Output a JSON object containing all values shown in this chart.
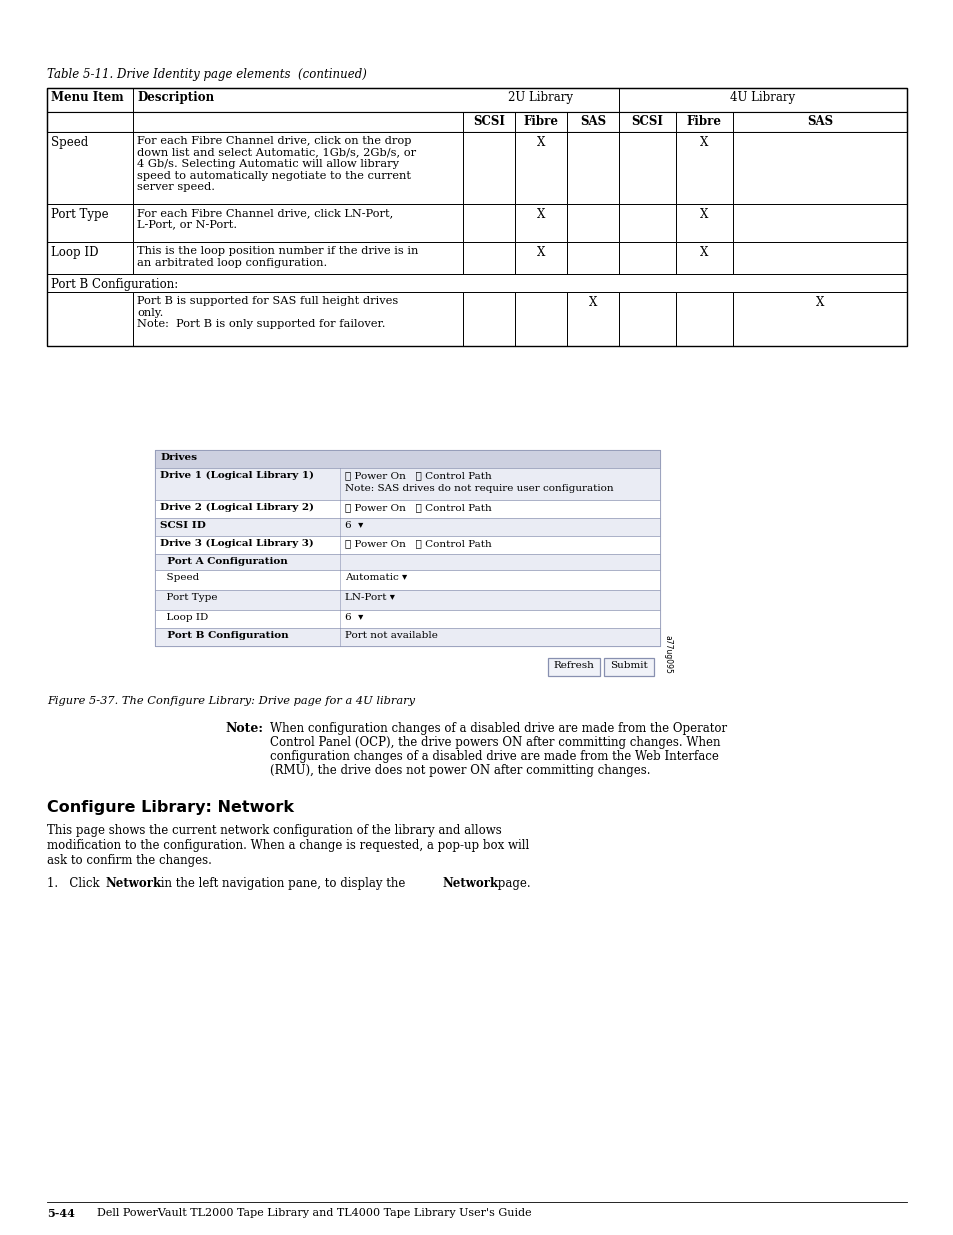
{
  "page_bg": "#ffffff",
  "table_title": "Table 5-11. Drive Identity page elements  (continued)",
  "table_rows": [
    {
      "menu_item": "Speed",
      "description": "For each Fibre Channel drive, click on the drop\ndown list and select Automatic, 1Gb/s, 2Gb/s, or\n4 Gb/s. Selecting Automatic will allow library\nspeed to automatically negotiate to the current\nserver speed.",
      "scsi_2u": "",
      "fibre_2u": "X",
      "sas_2u": "",
      "scsi_4u": "",
      "fibre_4u": "X",
      "sas_4u": "",
      "is_section": false
    },
    {
      "menu_item": "Port Type",
      "description": "For each Fibre Channel drive, click LN-Port,\nL-Port, or N-Port.",
      "scsi_2u": "",
      "fibre_2u": "X",
      "sas_2u": "",
      "scsi_4u": "",
      "fibre_4u": "X",
      "sas_4u": "",
      "is_section": false
    },
    {
      "menu_item": "Loop ID",
      "description": "This is the loop position number if the drive is in\nan arbitrated loop configuration.",
      "scsi_2u": "",
      "fibre_2u": "X",
      "sas_2u": "",
      "scsi_4u": "",
      "fibre_4u": "X",
      "sas_4u": "",
      "is_section": false
    },
    {
      "menu_item": "Port B Configuration:",
      "description": "",
      "scsi_2u": "",
      "fibre_2u": "",
      "sas_2u": "",
      "scsi_4u": "",
      "fibre_4u": "",
      "sas_4u": "",
      "is_section": true
    },
    {
      "menu_item": "",
      "description": "Port B is supported for SAS full height drives\nonly.\nNote:  Port B is only supported for failover.",
      "scsi_2u": "",
      "fibre_2u": "",
      "sas_2u": "X",
      "scsi_4u": "",
      "fibre_4u": "",
      "sas_4u": "X",
      "is_section": false
    }
  ],
  "screenshot_caption": "Figure 5-37. The Configure Library: Drive page for a 4U library",
  "section_heading": "Configure Library: Network",
  "body_text1": "This page shows the current network configuration of the library and allows\nmodification to the configuration. When a change is requested, a pop-up box will\nask to confirm the changes.",
  "footer_left": "5-44",
  "footer_right": "Dell PowerVault TL2000 Tape Library and TL4000 Tape Library User's Guide",
  "ss_header_bg": "#cdd0e0",
  "ss_row_odd": "#eaecf4",
  "ss_row_even": "#ffffff",
  "ss_border": "#8890b0"
}
